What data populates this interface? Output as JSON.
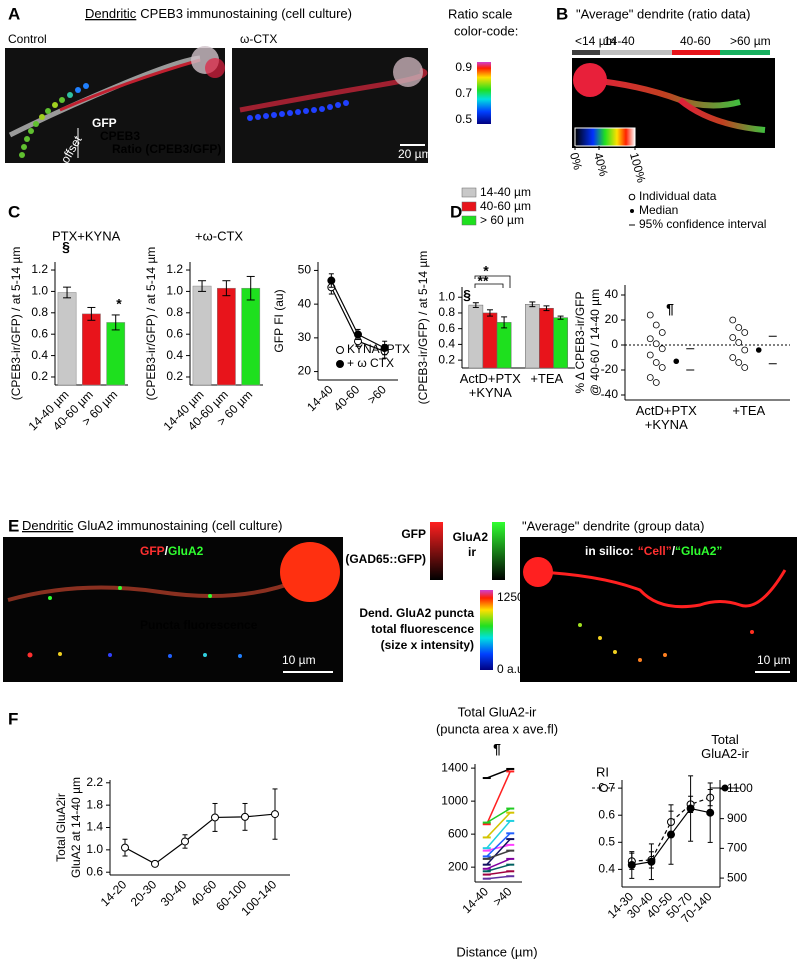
{
  "panels": {
    "A": {
      "letter": "A",
      "title_underlined": "Dendritic",
      "title": "CPEB3 immunostaining (cell culture)",
      "control": "Control",
      "ctx": "ω-CTX",
      "scale_title": [
        "Ratio scale",
        "color-code:"
      ],
      "scale_ticks": [
        0.9,
        0.7,
        0.5
      ],
      "gfp": "GFP",
      "cpeb3": "CPEB3",
      "ratio": "Ratio (CPEB3/GFP)",
      "offset": "offset",
      "scalebar": "20 µm"
    },
    "B": {
      "letter": "B",
      "title": "\"Average\" dendrite (ratio data)",
      "segments": [
        "<14 µm",
        "14-40",
        "40-60",
        ">60 µm"
      ],
      "scale_ticks": [
        {
          "value": 0,
          "label": "0%"
        },
        {
          "value": 40,
          "label": "40%"
        },
        {
          "value": 100,
          "label": "100%"
        }
      ]
    },
    "C": {
      "letter": "C",
      "titles": [
        "PTX+KYNA",
        "+ω-CTX"
      ]
    },
    "D": {
      "letter": "D"
    },
    "E": {
      "letter": "E",
      "title_underlined": "Dendritic",
      "title": "GluA2 immunostaining (cell culture)",
      "gfp": "GFP",
      "slash": "/",
      "gluA2": "GluA2",
      "puncta": "Puncta fluorescence",
      "scalebar": "10 µm",
      "bar_gfp": [
        "GFP",
        "(GAD65::GFP)"
      ],
      "bar_gluA2": [
        "GluA2",
        "ir"
      ],
      "scale_ticks": [
        1250,
        {
          "value": 0,
          "label": "0 a.u."
        }
      ],
      "scale_title": [
        "Dend. GluA2 puncta",
        "total fluorescence",
        "(size x intensity)"
      ],
      "avg_title": "\"Average\" dendrite (group data)",
      "in_silico": "in silico:",
      "cell": "“Cell”",
      "gluA2_q": "“GluA2”",
      "puncta2": "Puncta fluorescence",
      "scalebar2": "10 µm"
    },
    "F": {
      "letter": "F"
    }
  },
  "chart_data": [
    {
      "type": "bar",
      "ylabel": "(CPEB3-ir/GFP) / at 5-14 µm",
      "categories": [
        "14-40 µm",
        "40-60 µm",
        "> 60 µm"
      ],
      "values": [
        0.99,
        0.79,
        0.71
      ],
      "errors": [
        0.05,
        0.06,
        0.07
      ],
      "colors": [
        "#c8c8c8",
        "#e8141b",
        "#1ee01e"
      ],
      "ylim": [
        0.125,
        1.275
      ],
      "yticks": [
        0.2,
        0.4,
        0.6,
        0.8,
        {
          "value": 1,
          "label": "1.0"
        },
        1.2
      ],
      "annotations": [
        "§",
        "*"
      ]
    },
    {
      "type": "bar",
      "ylabel": "(CPEB3-ir/GFP) / at 5-14 µm",
      "categories": [
        "14-40 µm",
        "40-60 µm",
        "> 60 µm"
      ],
      "values": [
        1.05,
        1.03,
        1.03
      ],
      "errors": [
        0.05,
        0.07,
        0.11
      ],
      "colors": [
        "#c8c8c8",
        "#e8141b",
        "#1ee01e"
      ],
      "ylim": [
        0.125,
        1.275
      ],
      "yticks": [
        0.2,
        0.4,
        0.6,
        0.8,
        {
          "value": 1,
          "label": "1.0"
        },
        1.2
      ]
    },
    {
      "type": "line",
      "ylabel": "GFP FI (au)",
      "categories": [
        "14-40",
        "40-60",
        ">60"
      ],
      "series": [
        {
          "name": "KYNA+PTX",
          "marker": "open",
          "color": "#000000",
          "values": [
            45,
            29,
            26
          ],
          "errors": [
            2,
            1.5,
            2
          ]
        },
        {
          "name": "+ ω CTX",
          "marker": "filled",
          "color": "#000000",
          "values": [
            47,
            31,
            27
          ],
          "errors": [
            2,
            1.5,
            2
          ]
        }
      ],
      "ylim": [
        17.5,
        52.5
      ],
      "yticks": [
        20,
        30,
        40,
        50
      ],
      "legend": "lower right"
    },
    {
      "type": "bar",
      "ylabel": "(CPEB3-ir/GFP) / at 5-14 µm",
      "categories": [
        "ActD+PTX +KYNA",
        "+TEA"
      ],
      "series": [
        {
          "name": "14-40 µm",
          "color": "#c8c8c8",
          "values": [
            0.9,
            0.91
          ],
          "errors": [
            0.03,
            0.03
          ]
        },
        {
          "name": "40-60 µm",
          "color": "#e8141b",
          "values": [
            0.8,
            0.86
          ],
          "errors": [
            0.04,
            0.03
          ]
        },
        {
          "name": "> 60 µm",
          "color": "#1ee01e",
          "values": [
            0.68,
            0.74
          ],
          "errors": [
            0.07,
            0.02
          ]
        }
      ],
      "ylim": [
        0.1,
        1.13
      ],
      "yticks": [
        0.2,
        0.4,
        0.6,
        0.8,
        {
          "value": 1,
          "label": "1.0"
        }
      ],
      "annotations": [
        "§",
        "**",
        "*"
      ],
      "legend": "upper left"
    },
    {
      "type": "scatter",
      "ylabel": [
        "% Δ CPEB3-ir/GFP",
        "@ 40-60 / 14-40 µm"
      ],
      "categories": [
        "ActD+PTX +KYNA",
        "+TEA"
      ],
      "points": [
        [
          24,
          16,
          10,
          5,
          1,
          -3,
          -8,
          -14,
          -18,
          -26,
          -30
        ],
        [
          20,
          14,
          10,
          6,
          2,
          -4,
          -10,
          -14,
          -18
        ]
      ],
      "medians": [
        -13,
        -4
      ],
      "ci": [
        [
          -20,
          -3
        ],
        [
          -15,
          7
        ]
      ],
      "legend": [
        "Individual data",
        "Median",
        "95% confidence interval"
      ],
      "ylim": [
        -44,
        48
      ],
      "yticks": [
        -40,
        -20,
        0,
        20,
        40
      ],
      "annotations": [
        "¶"
      ]
    },
    {
      "type": "line",
      "ylabel": [
        "Total GluA2ir",
        "GluA2 at 14-40 µm"
      ],
      "categories": [
        "14-20",
        "20-30",
        "30-40",
        "40-60",
        "60-100",
        "100-140"
      ],
      "values": [
        1.04,
        0.75,
        1.15,
        1.58,
        1.59,
        1.64
      ],
      "errors": [
        0.15,
        0.05,
        0.12,
        0.25,
        0.24,
        0.45
      ],
      "color": "#000000",
      "marker": "open",
      "ylim": [
        0.55,
        2.25
      ],
      "yticks": [
        0.6,
        {
          "value": 1,
          "label": "1.0"
        },
        1.4,
        1.8,
        2.2
      ]
    },
    {
      "type": "line",
      "title": [
        "Total GluA2-ir",
        "(puncta area x ave.fl)"
      ],
      "xlabel": "Distance (µm)",
      "annotations": [
        "¶"
      ],
      "categories": [
        "14-40",
        ">40"
      ],
      "series": [
        {
          "color": "#000000",
          "values": [
            1280,
            1390
          ]
        },
        {
          "color": "#ff2020",
          "values": [
            720,
            1360
          ]
        },
        {
          "color": "#22cc22",
          "values": [
            740,
            910
          ]
        },
        {
          "color": "#d4c400",
          "values": [
            560,
            860
          ]
        },
        {
          "color": "#20d0e0",
          "values": [
            430,
            760
          ]
        },
        {
          "color": "#ff40ff",
          "values": [
            400,
            470
          ]
        },
        {
          "color": "#2060ff",
          "values": [
            330,
            610
          ]
        },
        {
          "color": "#101060",
          "values": [
            230,
            540
          ]
        },
        {
          "color": "#404040",
          "values": [
            300,
            400
          ]
        },
        {
          "color": "#8000a0",
          "values": [
            180,
            300
          ]
        },
        {
          "color": "#006060",
          "values": [
            150,
            230
          ]
        },
        {
          "color": "#a00040",
          "values": [
            110,
            150
          ]
        },
        {
          "color": "#6030a0",
          "values": [
            60,
            90
          ]
        }
      ],
      "marker": "tick",
      "ylim": [
        20,
        1450
      ],
      "yticks": [
        200,
        600,
        1000,
        1400
      ]
    },
    {
      "type": "line",
      "categories": [
        "14-30",
        "30-40",
        "40-50",
        "50-70",
        "70-140"
      ],
      "series": [
        {
          "name": "RI",
          "color": "#000000",
          "marker": "open",
          "dashed": true,
          "values": [
            0.43,
            0.435,
            0.575,
            0.64,
            0.665
          ],
          "errors": [
            0.03,
            0.03,
            0.04,
            0.03,
            0.03
          ]
        },
        {
          "name": "Total GluA2-ir",
          "axis": "y2",
          "color": "#000000",
          "marker": "filled",
          "values": [
            588,
            610,
            793,
            968,
            940
          ],
          "errors": [
            90,
            120,
            200,
            220,
            200
          ]
        }
      ],
      "ylim": [
        0.335,
        0.73
      ],
      "yticks": [
        0.4,
        0.5,
        0.6,
        0.7
      ],
      "y2lim": [
        440,
        1160
      ],
      "y2ticks": [
        500,
        700,
        900,
        1100
      ]
    }
  ]
}
